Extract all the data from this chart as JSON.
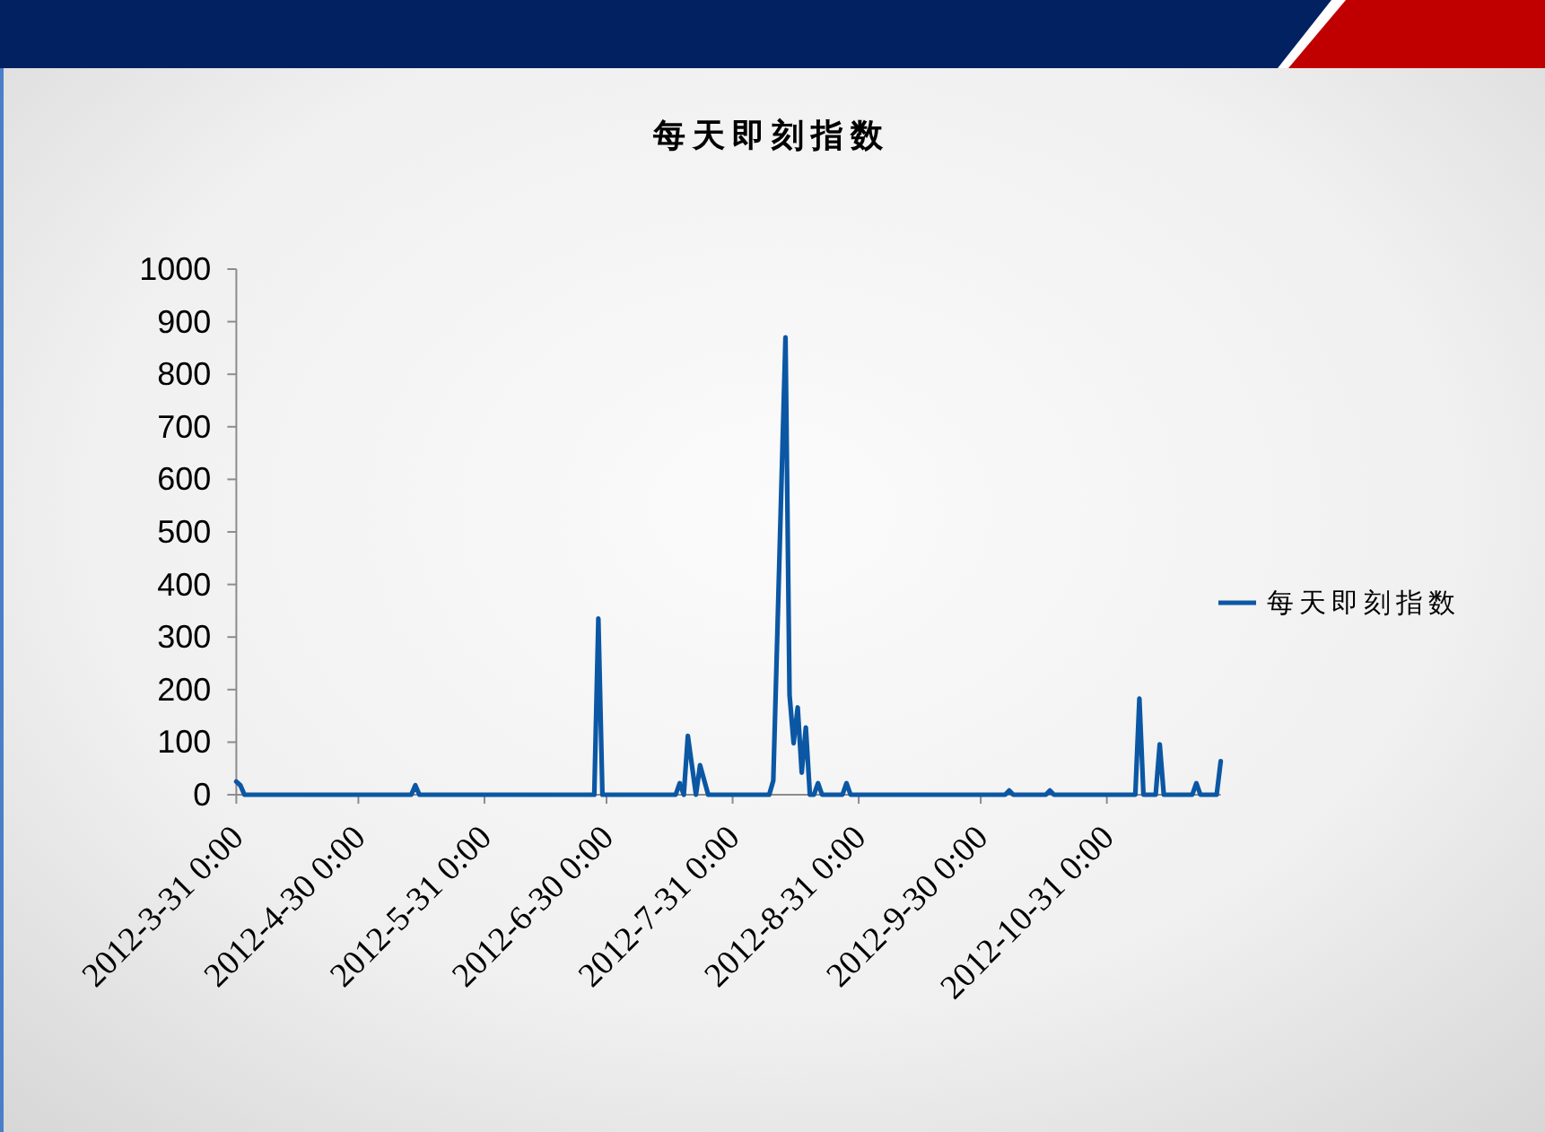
{
  "chart_data": {
    "type": "line",
    "title": "每天即刻指数",
    "x": [
      "2012-03-31",
      "2012-04-01",
      "2012-04-02",
      "2012-05-13",
      "2012-05-14",
      "2012-05-15",
      "2012-06-27",
      "2012-06-28",
      "2012-06-29",
      "2012-07-17",
      "2012-07-18",
      "2012-07-19",
      "2012-07-20",
      "2012-07-22",
      "2012-07-23",
      "2012-07-25",
      "2012-08-09",
      "2012-08-10",
      "2012-08-13",
      "2012-08-14",
      "2012-08-15",
      "2012-08-16",
      "2012-08-17",
      "2012-08-18",
      "2012-08-19",
      "2012-08-20",
      "2012-08-21",
      "2012-08-22",
      "2012-08-27",
      "2012-08-28",
      "2012-08-29",
      "2012-10-06",
      "2012-10-07",
      "2012-10-08",
      "2012-10-16",
      "2012-10-17",
      "2012-10-18",
      "2012-11-07",
      "2012-11-08",
      "2012-11-09",
      "2012-11-12",
      "2012-11-13",
      "2012-11-14",
      "2012-11-21",
      "2012-11-22",
      "2012-11-23",
      "2012-11-27",
      "2012-11-28"
    ],
    "series": [
      {
        "name": "每天即刻指数",
        "color": "#0b57a4",
        "values": [
          25,
          18,
          0,
          0,
          18,
          0,
          0,
          335,
          0,
          0,
          22,
          0,
          112,
          0,
          56,
          0,
          0,
          27,
          870,
          190,
          98,
          166,
          42,
          128,
          0,
          0,
          22,
          0,
          0,
          22,
          0,
          0,
          8,
          0,
          0,
          8,
          0,
          0,
          183,
          0,
          0,
          96,
          0,
          0,
          22,
          0,
          0,
          64
        ]
      }
    ],
    "xlim": [
      "2012-03-31",
      "2012-11-28"
    ],
    "xticks": [
      {
        "value": "2012-03-31",
        "label": "2012-3-31 0:00"
      },
      {
        "value": "2012-04-30",
        "label": "2012-4-30 0:00"
      },
      {
        "value": "2012-05-31",
        "label": "2012-5-31 0:00"
      },
      {
        "value": "2012-06-30",
        "label": "2012-6-30 0:00"
      },
      {
        "value": "2012-07-31",
        "label": "2012-7-31 0:00"
      },
      {
        "value": "2012-08-31",
        "label": "2012-8-31 0:00"
      },
      {
        "value": "2012-09-30",
        "label": "2012-9-30 0:00"
      },
      {
        "value": "2012-10-31",
        "label": "2012-10-31 0:00"
      }
    ],
    "ylim": [
      0,
      1000
    ],
    "yticks": [
      0,
      100,
      200,
      300,
      400,
      500,
      600,
      700,
      800,
      900,
      1000
    ],
    "legend": "right"
  }
}
